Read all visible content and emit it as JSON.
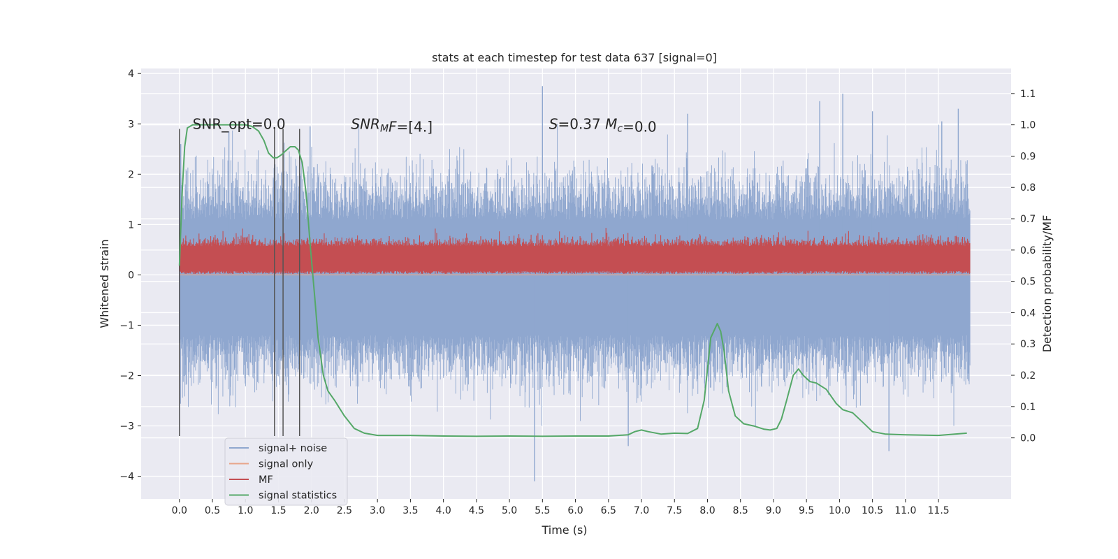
{
  "chart_data": {
    "type": "line",
    "title": "stats at each timestep for test data 637 [signal=0]",
    "xlabel": "Time (s)",
    "ylabel": "Whitened strain",
    "y2label": "Detection probability/MF",
    "xlim": [
      -0.58,
      12.6
    ],
    "ylim": [
      -4.45,
      4.1
    ],
    "y2lim": [
      -0.195,
      1.18
    ],
    "x_ticks": [
      0.0,
      0.5,
      1.0,
      1.5,
      2.0,
      2.5,
      3.0,
      3.5,
      4.0,
      4.5,
      5.0,
      5.5,
      6.0,
      6.5,
      7.0,
      7.5,
      8.0,
      8.5,
      9.0,
      9.5,
      10.0,
      10.5,
      11.0,
      11.5
    ],
    "x_tick_labels": [
      "0.0",
      "0.5",
      "1.0",
      "1.5",
      "2.0",
      "2.5",
      "3.0",
      "3.5",
      "4.0",
      "4.5",
      "5.0",
      "5.5",
      "6.0",
      "6.5",
      "7.0",
      "7.5",
      "8.0",
      "8.5",
      "9.0",
      "9.5",
      "10.0",
      "10.5",
      "11.0",
      "11.5"
    ],
    "y_ticks": [
      -4,
      -3,
      -2,
      -1,
      0,
      1,
      2,
      3,
      4
    ],
    "y_tick_labels": [
      "−4",
      "−3",
      "−2",
      "−1",
      "0",
      "1",
      "2",
      "3",
      "4"
    ],
    "y2_ticks": [
      0.0,
      0.1,
      0.2,
      0.3,
      0.4,
      0.5,
      0.6,
      0.7,
      0.8,
      0.9,
      1.0,
      1.1
    ],
    "y2_tick_labels": [
      "0.0",
      "0.1",
      "0.2",
      "0.3",
      "0.4",
      "0.5",
      "0.6",
      "0.7",
      "0.8",
      "0.9",
      "1.0",
      "1.1"
    ],
    "grid": true,
    "legend_position": "lower-left",
    "annotations": [
      {
        "x": 0.2,
        "y": 2.9,
        "text": "SNR_opt=0.0",
        "parts": [
          {
            "t": "SNR_opt=0.0",
            "italic": false
          }
        ]
      },
      {
        "x": 2.6,
        "y": 2.9,
        "text": "SNR_MF=[4.]",
        "parts": [
          {
            "t": "SNR",
            "italic": true
          },
          {
            "t": "M",
            "italic": true,
            "sub": true
          },
          {
            "t": "F",
            "italic": true
          },
          {
            "t": "=[4.]",
            "italic": false
          }
        ]
      },
      {
        "x": 5.6,
        "y": 2.9,
        "text": "S=0.37  M_c=0.0",
        "parts": [
          {
            "t": "S",
            "italic": true
          },
          {
            "t": "=0.37   ",
            "italic": false
          },
          {
            "t": "M",
            "italic": true
          },
          {
            "t": "c",
            "italic": true,
            "sub": true
          },
          {
            "t": "=0.0",
            "italic": false
          }
        ]
      }
    ],
    "vlines": [
      {
        "x": 0.0,
        "ymin": -3.2,
        "ymax": 2.9
      },
      {
        "x": 1.44,
        "ymin": -3.2,
        "ymax": 2.9
      },
      {
        "x": 1.57,
        "ymin": -3.2,
        "ymax": 2.9
      },
      {
        "x": 1.82,
        "ymin": -3.2,
        "ymax": 2.9
      }
    ],
    "series": [
      {
        "name": "signal+ noise",
        "color": "#8fa7cf",
        "axis": "left",
        "kind": "noise",
        "x_range": [
          0.0,
          11.98
        ],
        "spikes": [
          {
            "x": 0.0,
            "y": -3.2
          },
          {
            "x": 0.02,
            "y": 2.6
          },
          {
            "x": 0.75,
            "y": 2.85
          },
          {
            "x": 1.98,
            "y": 2.95
          },
          {
            "x": 5.5,
            "y": 3.75
          },
          {
            "x": 5.38,
            "y": -4.1
          },
          {
            "x": 6.8,
            "y": -3.4
          },
          {
            "x": 10.05,
            "y": 3.6
          },
          {
            "x": 9.7,
            "y": 3.45
          },
          {
            "x": 10.75,
            "y": -3.5
          },
          {
            "x": 10.5,
            "y": 3.25
          },
          {
            "x": 11.8,
            "y": 3.3
          },
          {
            "x": 11.55,
            "y": 3.05
          },
          {
            "x": 7.7,
            "y": 3.2
          }
        ]
      },
      {
        "name": "signal only",
        "color": "#e8a58a",
        "axis": "left",
        "kind": "flat",
        "value": 0.0
      },
      {
        "name": "MF",
        "color": "#c44e52",
        "axis": "left",
        "kind": "band",
        "x_range": [
          0.0,
          11.98
        ],
        "band": [
          0.0,
          0.62
        ],
        "peak": 1.0
      },
      {
        "name": "signal statistics",
        "color": "#55a868",
        "axis": "right",
        "kind": "line",
        "x": [
          0.0,
          0.04,
          0.08,
          0.12,
          0.2,
          0.3,
          0.5,
          0.8,
          1.0,
          1.1,
          1.2,
          1.28,
          1.35,
          1.42,
          1.48,
          1.55,
          1.6,
          1.68,
          1.75,
          1.8,
          1.86,
          1.92,
          1.98,
          2.05,
          2.1,
          2.18,
          2.25,
          2.35,
          2.5,
          2.65,
          2.8,
          3.0,
          3.5,
          4.0,
          4.5,
          5.0,
          5.5,
          6.0,
          6.5,
          6.8,
          6.9,
          7.0,
          7.1,
          7.3,
          7.5,
          7.7,
          7.85,
          7.95,
          8.05,
          8.15,
          8.2,
          8.25,
          8.32,
          8.42,
          8.55,
          8.7,
          8.85,
          8.95,
          9.05,
          9.12,
          9.2,
          9.3,
          9.38,
          9.45,
          9.55,
          9.65,
          9.8,
          9.95,
          10.05,
          10.2,
          10.35,
          10.5,
          10.7,
          11.0,
          11.5,
          11.93
        ],
        "y": [
          0.55,
          0.78,
          0.93,
          0.99,
          1.0,
          1.0,
          1.0,
          1.0,
          1.0,
          0.995,
          0.98,
          0.95,
          0.91,
          0.895,
          0.895,
          0.905,
          0.915,
          0.93,
          0.93,
          0.92,
          0.88,
          0.78,
          0.62,
          0.45,
          0.32,
          0.2,
          0.15,
          0.12,
          0.07,
          0.03,
          0.015,
          0.008,
          0.008,
          0.006,
          0.005,
          0.006,
          0.005,
          0.006,
          0.006,
          0.01,
          0.02,
          0.025,
          0.02,
          0.012,
          0.015,
          0.014,
          0.03,
          0.12,
          0.32,
          0.365,
          0.34,
          0.28,
          0.15,
          0.07,
          0.045,
          0.038,
          0.028,
          0.025,
          0.03,
          0.06,
          0.12,
          0.2,
          0.22,
          0.2,
          0.18,
          0.175,
          0.155,
          0.11,
          0.09,
          0.08,
          0.05,
          0.02,
          0.012,
          0.01,
          0.008,
          0.015
        ]
      }
    ]
  }
}
